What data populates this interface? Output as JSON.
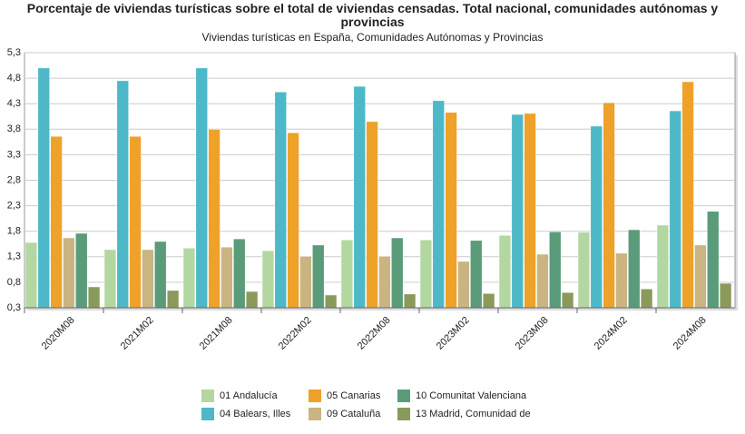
{
  "chart_data": {
    "type": "bar",
    "title": "Porcentaje de viviendas turísticas sobre el total de viviendas censadas. Total nacional, comunidades autónomas y provincias",
    "subtitle": "Viviendas turísticas en España, Comunidades Autónomas y Provincias",
    "categories": [
      "2020M08",
      "2021M02",
      "2021M08",
      "2022M02",
      "2022M08",
      "2023M02",
      "2023M08",
      "2024M02",
      "2024M08"
    ],
    "series": [
      {
        "name": "01 Andalucía",
        "color": "#b3d7a0",
        "values": [
          1.58,
          1.44,
          1.47,
          1.42,
          1.63,
          1.63,
          1.72,
          1.78,
          1.92
        ]
      },
      {
        "name": "04 Balears, Illes",
        "color": "#4db8c8",
        "values": [
          5.0,
          4.75,
          5.0,
          4.53,
          4.64,
          4.36,
          4.09,
          3.86,
          4.16
        ]
      },
      {
        "name": "05 Canarias",
        "color": "#eea229",
        "values": [
          3.66,
          3.66,
          3.8,
          3.73,
          3.95,
          4.13,
          4.11,
          4.32,
          4.73
        ]
      },
      {
        "name": "09 Cataluña",
        "color": "#c9b482",
        "values": [
          1.67,
          1.44,
          1.49,
          1.31,
          1.31,
          1.21,
          1.35,
          1.37,
          1.53
        ]
      },
      {
        "name": "10 Comunitat Valenciana",
        "color": "#5a9c7a",
        "values": [
          1.76,
          1.6,
          1.65,
          1.53,
          1.67,
          1.62,
          1.79,
          1.83,
          2.19
        ]
      },
      {
        "name": "13 Madrid, Comunidad de",
        "color": "#8a9a5b",
        "values": [
          0.71,
          0.64,
          0.62,
          0.55,
          0.57,
          0.58,
          0.6,
          0.67,
          0.78
        ]
      }
    ],
    "ylim": [
      0.3,
      5.3
    ],
    "yticks": [
      {
        "value": 0.3,
        "label": "0,3"
      },
      {
        "value": 0.8,
        "label": "0,8"
      },
      {
        "value": 1.3,
        "label": "1,3"
      },
      {
        "value": 1.8,
        "label": "1,8"
      },
      {
        "value": 2.3,
        "label": "2,3"
      },
      {
        "value": 2.8,
        "label": "2,8"
      },
      {
        "value": 3.3,
        "label": "3,3"
      },
      {
        "value": 3.8,
        "label": "3,8"
      },
      {
        "value": 4.3,
        "label": "4,3"
      },
      {
        "value": 4.8,
        "label": "4,8"
      },
      {
        "value": 5.3,
        "label": "5,3"
      }
    ],
    "grid": true
  }
}
